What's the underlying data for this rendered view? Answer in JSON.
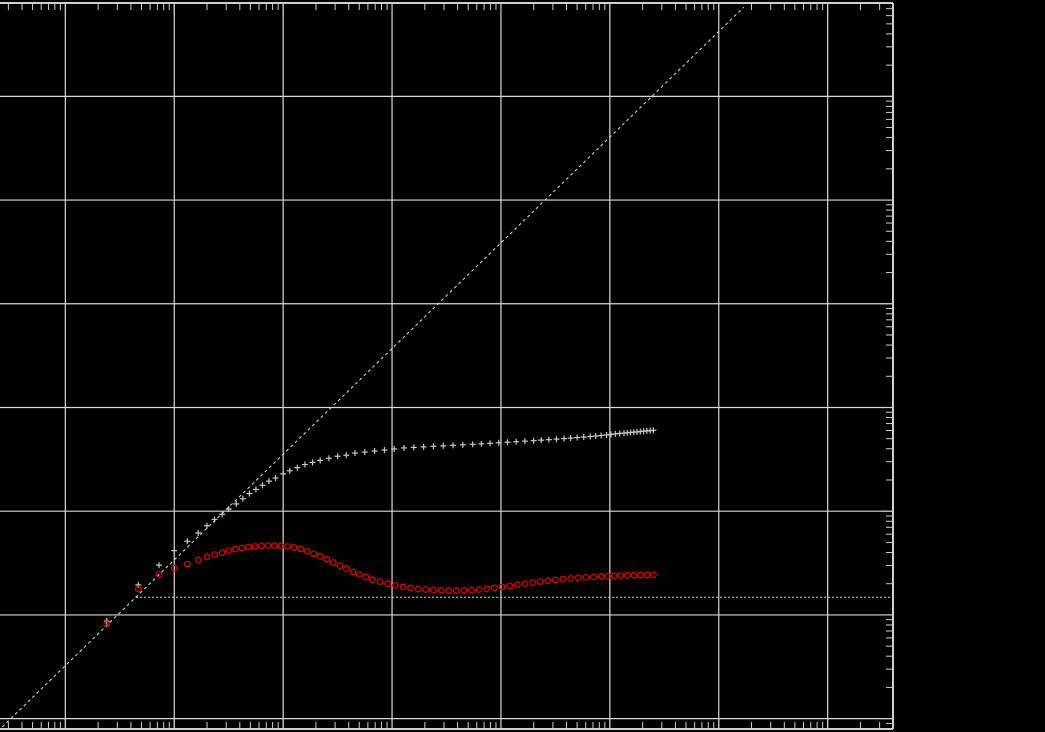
{
  "chart_data": {
    "type": "scatter",
    "title": "",
    "xlabel": "",
    "ylabel": "",
    "x_scale": "log",
    "y_scale": "log",
    "xlim_log10": [
      -0.6,
      7.6
    ],
    "ylim_log10": [
      -1.1,
      5.9
    ],
    "grid": true,
    "legend": "none",
    "colors": {
      "background": "#000000",
      "grid": "#d8d8d8",
      "frame": "#cfcfcf",
      "series_white": "#c8c8c8",
      "series_red": "#e00000",
      "reference": "#e0e0e0"
    },
    "reference_lines": [
      {
        "kind": "diagonal",
        "x_log10": [
          -0.58,
          6.23
        ],
        "y_log10": [
          -1.08,
          5.86
        ]
      },
      {
        "kind": "horizontal",
        "y_log10": 0.17,
        "x_log10_from": 0.65,
        "x_log10_to": 7.6
      }
    ],
    "series": [
      {
        "marker": "plus",
        "color": "#c8c8c8",
        "points_log10": [
          [
            0.38,
            -0.06
          ],
          [
            0.67,
            0.29
          ],
          [
            0.86,
            0.48
          ],
          [
            1.0,
            0.62
          ],
          [
            1.12,
            0.71
          ],
          [
            1.22,
            0.79
          ],
          [
            1.3,
            0.86
          ],
          [
            1.37,
            0.92
          ],
          [
            1.44,
            0.97
          ],
          [
            1.5,
            1.02
          ],
          [
            1.57,
            1.07
          ],
          [
            1.63,
            1.12
          ],
          [
            1.69,
            1.17
          ],
          [
            1.75,
            1.21
          ],
          [
            1.81,
            1.25
          ],
          [
            1.87,
            1.29
          ],
          [
            1.93,
            1.32
          ],
          [
            2.0,
            1.36
          ],
          [
            2.06,
            1.39
          ],
          [
            2.13,
            1.42
          ],
          [
            2.2,
            1.45
          ],
          [
            2.27,
            1.47
          ],
          [
            2.34,
            1.49
          ],
          [
            2.42,
            1.51
          ],
          [
            2.5,
            1.53
          ],
          [
            2.58,
            1.54
          ],
          [
            2.66,
            1.56
          ],
          [
            2.75,
            1.57
          ],
          [
            2.84,
            1.58
          ],
          [
            2.93,
            1.59
          ],
          [
            3.02,
            1.6
          ],
          [
            3.11,
            1.61
          ],
          [
            3.2,
            1.615
          ],
          [
            3.29,
            1.62
          ],
          [
            3.38,
            1.625
          ],
          [
            3.47,
            1.63
          ],
          [
            3.56,
            1.635
          ],
          [
            3.65,
            1.64
          ],
          [
            3.74,
            1.645
          ],
          [
            3.82,
            1.65
          ],
          [
            3.9,
            1.655
          ],
          [
            3.98,
            1.66
          ],
          [
            4.06,
            1.665
          ],
          [
            4.14,
            1.67
          ],
          [
            4.22,
            1.675
          ],
          [
            4.3,
            1.68
          ],
          [
            4.37,
            1.685
          ],
          [
            4.44,
            1.69
          ],
          [
            4.51,
            1.695
          ],
          [
            4.58,
            1.7
          ],
          [
            4.64,
            1.705
          ],
          [
            4.7,
            1.71
          ],
          [
            4.76,
            1.715
          ],
          [
            4.82,
            1.72
          ],
          [
            4.87,
            1.725
          ],
          [
            4.92,
            1.73
          ],
          [
            4.97,
            1.735
          ],
          [
            5.01,
            1.74
          ],
          [
            5.05,
            1.745
          ],
          [
            5.09,
            1.75
          ],
          [
            5.13,
            1.753
          ],
          [
            5.16,
            1.756
          ],
          [
            5.19,
            1.759
          ],
          [
            5.22,
            1.762
          ],
          [
            5.25,
            1.765
          ],
          [
            5.28,
            1.768
          ],
          [
            5.31,
            1.771
          ],
          [
            5.34,
            1.774
          ],
          [
            5.37,
            1.777
          ],
          [
            5.4,
            1.78
          ]
        ]
      },
      {
        "marker": "circle",
        "color": "#e00000",
        "points_log10": [
          [
            0.38,
            -0.09
          ],
          [
            0.67,
            0.25
          ],
          [
            0.86,
            0.39
          ],
          [
            1.0,
            0.45
          ],
          [
            1.12,
            0.49
          ],
          [
            1.22,
            0.53
          ],
          [
            1.3,
            0.56
          ],
          [
            1.37,
            0.58
          ],
          [
            1.44,
            0.6
          ],
          [
            1.5,
            0.62
          ],
          [
            1.56,
            0.635
          ],
          [
            1.62,
            0.645
          ],
          [
            1.68,
            0.655
          ],
          [
            1.74,
            0.66
          ],
          [
            1.8,
            0.665
          ],
          [
            1.86,
            0.668
          ],
          [
            1.92,
            0.668
          ],
          [
            1.98,
            0.665
          ],
          [
            2.04,
            0.66
          ],
          [
            2.1,
            0.65
          ],
          [
            2.16,
            0.635
          ],
          [
            2.22,
            0.615
          ],
          [
            2.28,
            0.59
          ],
          [
            2.34,
            0.565
          ],
          [
            2.4,
            0.535
          ],
          [
            2.46,
            0.505
          ],
          [
            2.52,
            0.475
          ],
          [
            2.58,
            0.445
          ],
          [
            2.64,
            0.415
          ],
          [
            2.7,
            0.39
          ],
          [
            2.76,
            0.365
          ],
          [
            2.82,
            0.34
          ],
          [
            2.89,
            0.32
          ],
          [
            2.96,
            0.3
          ],
          [
            3.03,
            0.285
          ],
          [
            3.1,
            0.27
          ],
          [
            3.17,
            0.26
          ],
          [
            3.24,
            0.25
          ],
          [
            3.31,
            0.245
          ],
          [
            3.38,
            0.24
          ],
          [
            3.45,
            0.237
          ],
          [
            3.52,
            0.235
          ],
          [
            3.59,
            0.235
          ],
          [
            3.66,
            0.237
          ],
          [
            3.73,
            0.24
          ],
          [
            3.8,
            0.245
          ],
          [
            3.87,
            0.252
          ],
          [
            3.94,
            0.26
          ],
          [
            4.01,
            0.27
          ],
          [
            4.08,
            0.28
          ],
          [
            4.15,
            0.29
          ],
          [
            4.22,
            0.3
          ],
          [
            4.29,
            0.31
          ],
          [
            4.36,
            0.32
          ],
          [
            4.43,
            0.33
          ],
          [
            4.5,
            0.338
          ],
          [
            4.57,
            0.345
          ],
          [
            4.64,
            0.352
          ],
          [
            4.71,
            0.358
          ],
          [
            4.78,
            0.363
          ],
          [
            4.85,
            0.367
          ],
          [
            4.92,
            0.371
          ],
          [
            4.98,
            0.374
          ],
          [
            5.04,
            0.377
          ],
          [
            5.1,
            0.379
          ],
          [
            5.16,
            0.381
          ],
          [
            5.22,
            0.383
          ],
          [
            5.28,
            0.384
          ],
          [
            5.34,
            0.385
          ],
          [
            5.4,
            0.386
          ]
        ]
      }
    ]
  }
}
